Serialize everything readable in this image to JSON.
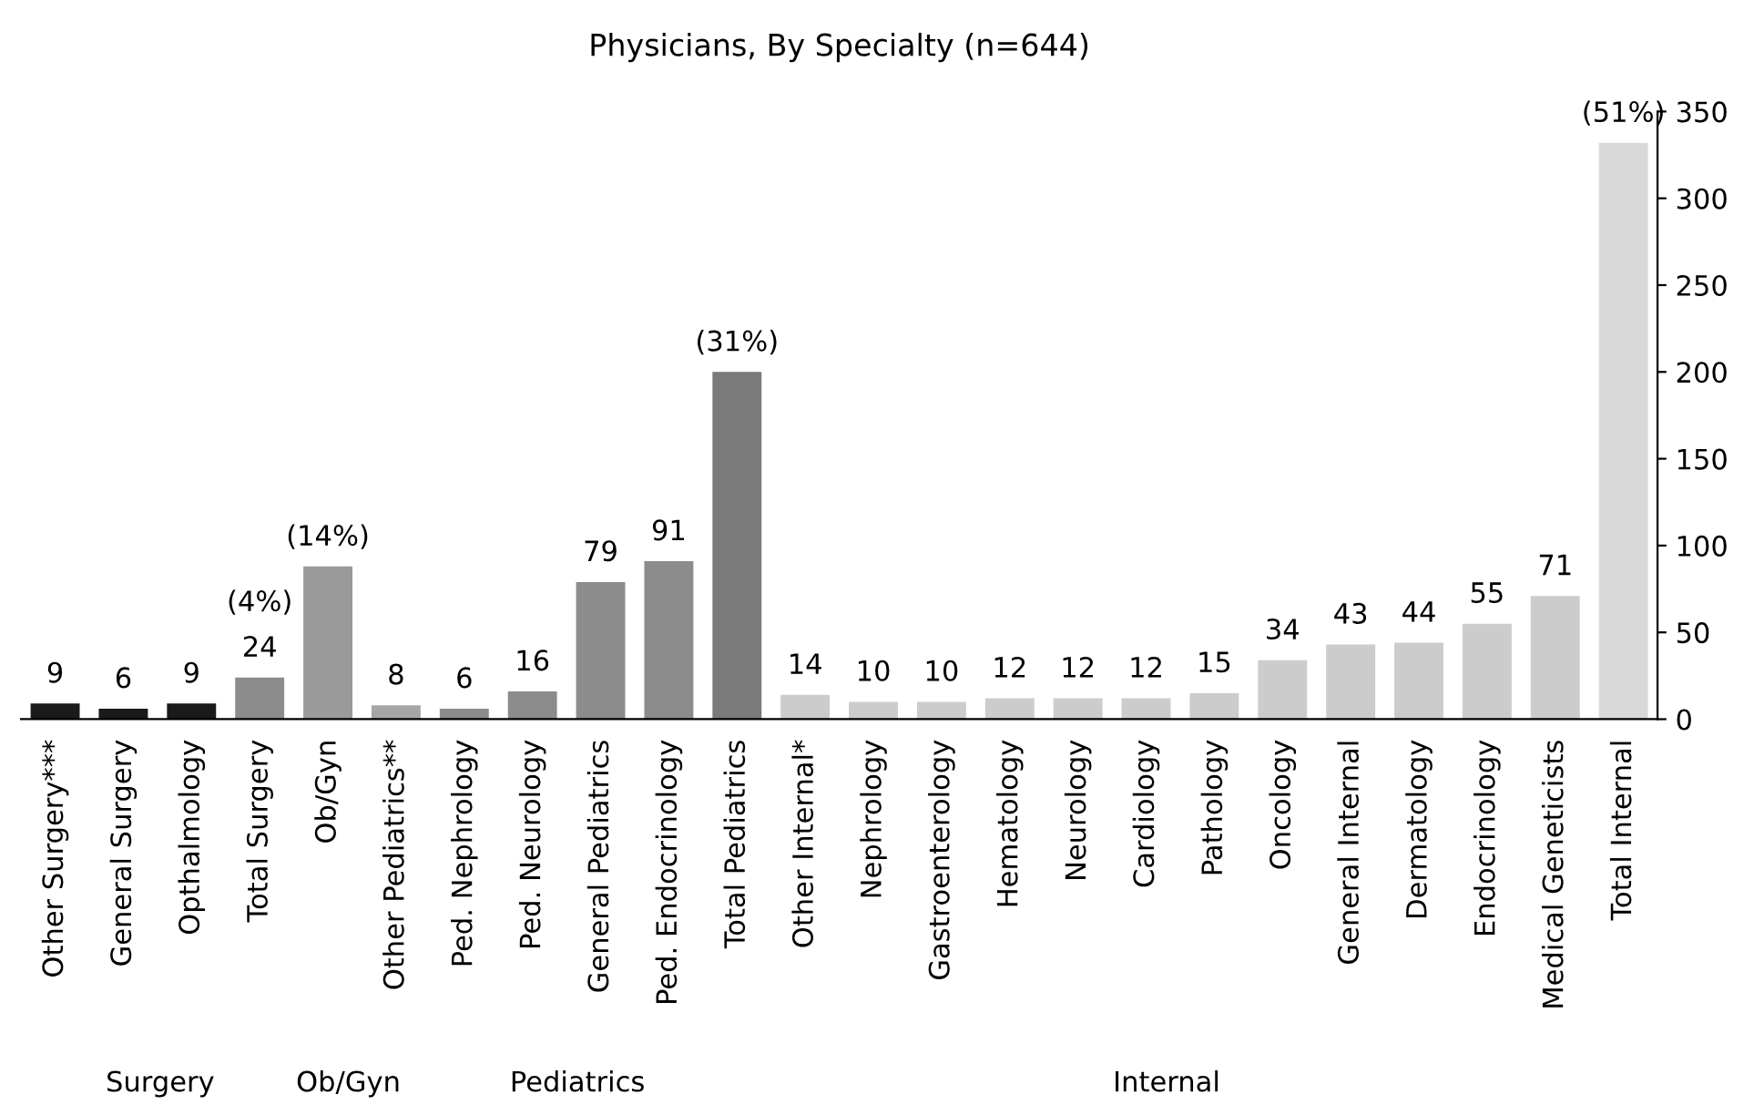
{
  "chart_data": {
    "type": "bar",
    "title": "Physicians, By Specialty (n=644)",
    "categories": [
      "Other Surgery***",
      "General Surgery",
      "Opthalmology",
      "Total Surgery",
      "Ob/Gyn",
      "Other Pediatrics**",
      "Ped. Nephrology",
      "Ped. Neurology",
      "General Pediatrics",
      "Ped. Endocrinology",
      "Total Pediatrics",
      "Other Internal*",
      "Nephrology",
      "Gastroenterology",
      "Hematology",
      "Neurology",
      "Cardiology",
      "Pathology",
      "Oncology",
      "General Internal",
      "Dermatology",
      "Endocrinology",
      "Medical Geneticists",
      "Total Internal"
    ],
    "values": [
      9,
      6,
      9,
      24,
      88,
      8,
      6,
      16,
      79,
      91,
      200,
      14,
      10,
      10,
      12,
      12,
      12,
      15,
      34,
      43,
      44,
      55,
      71,
      332
    ],
    "value_labels": [
      "9",
      "6",
      "9",
      "24",
      null,
      "8",
      "6",
      "16",
      "79",
      "91",
      null,
      "14",
      "10",
      "10",
      "12",
      "12",
      "12",
      "15",
      "34",
      "43",
      "44",
      "55",
      "71",
      null
    ],
    "colors": [
      "#1a1a1a",
      "#1a1a1a",
      "#1a1a1a",
      "#8c8c8c",
      "#9a9a9a",
      "#a6a6a6",
      "#8c8c8c",
      "#8c8c8c",
      "#8c8c8c",
      "#8c8c8c",
      "#7a7a7a",
      "#cccccc",
      "#cccccc",
      "#cccccc",
      "#cccccc",
      "#cccccc",
      "#cccccc",
      "#cccccc",
      "#cccccc",
      "#cccccc",
      "#cccccc",
      "#cccccc",
      "#cccccc",
      "#d9d9d9"
    ],
    "ylim": [
      0,
      350
    ],
    "yticks": [
      0,
      50,
      100,
      150,
      200,
      250,
      300,
      350
    ],
    "grid": false,
    "legend": false,
    "annotations": [
      {
        "text": "(4%)",
        "x": "Total Surgery",
        "y": 24
      },
      {
        "text": "(14%)",
        "x": "Ob/Gyn",
        "y": 88
      },
      {
        "text": "(31%)",
        "x": "Total Pediatrics",
        "y": 200
      },
      {
        "text": "(51%)",
        "x": "Total Internal",
        "y": 332
      },
      "Surgery",
      "Ob/Gyn",
      "Pediatrics",
      "Internal"
    ]
  }
}
